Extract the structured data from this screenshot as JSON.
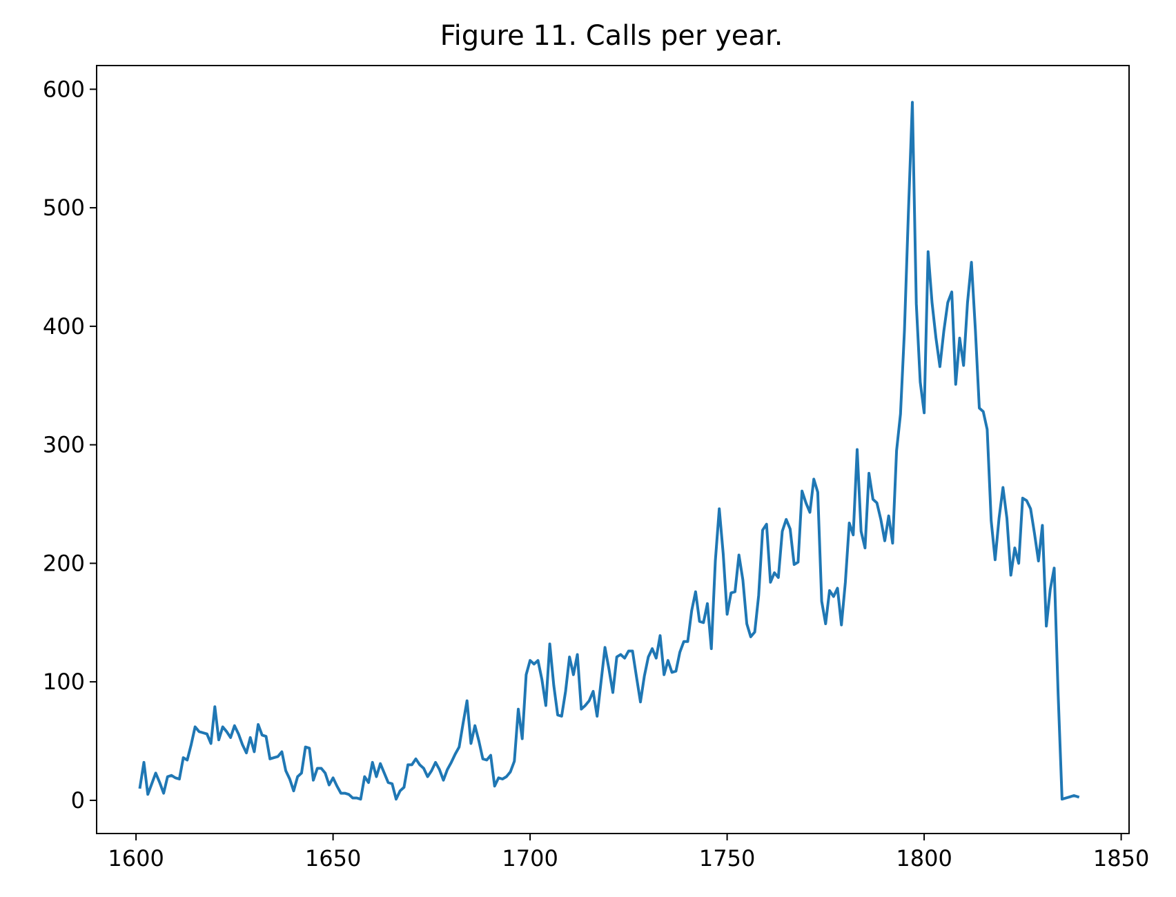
{
  "chart_data": {
    "type": "line",
    "title": "Figure 11. Calls per year.",
    "xlabel": "",
    "ylabel": "",
    "xlim": [
      1590,
      1852
    ],
    "ylim": [
      -28,
      620
    ],
    "x_ticks": [
      1600,
      1650,
      1700,
      1750,
      1800,
      1850
    ],
    "y_ticks": [
      0,
      100,
      200,
      300,
      400,
      500,
      600
    ],
    "grid": false,
    "color": "#1f77b4",
    "series": [
      {
        "x": [
          1601,
          1602,
          1603,
          1604,
          1605,
          1606,
          1607,
          1608,
          1609,
          1610,
          1611,
          1612,
          1613,
          1614,
          1615,
          1616,
          1617,
          1618,
          1619,
          1620,
          1621,
          1622,
          1623,
          1624,
          1625,
          1626,
          1627,
          1628,
          1629,
          1630,
          1631,
          1632,
          1633,
          1634,
          1635,
          1636,
          1637,
          1638,
          1639,
          1640,
          1641,
          1642,
          1643,
          1644,
          1645,
          1646,
          1647,
          1648,
          1649,
          1650,
          1651,
          1652,
          1653,
          1654,
          1655,
          1656,
          1657,
          1658,
          1659,
          1660,
          1661,
          1662,
          1663,
          1664,
          1665,
          1666,
          1667,
          1668,
          1669,
          1670,
          1671,
          1672,
          1673,
          1674,
          1675,
          1676,
          1677,
          1678,
          1679,
          1680,
          1681,
          1682,
          1683,
          1684,
          1685,
          1686,
          1687,
          1688,
          1689,
          1690,
          1691,
          1692,
          1693,
          1694,
          1695,
          1696,
          1697,
          1698,
          1699,
          1700,
          1701,
          1702,
          1703,
          1704,
          1705,
          1706,
          1707,
          1708,
          1709,
          1710,
          1711,
          1712,
          1713,
          1714,
          1715,
          1716,
          1717,
          1718,
          1719,
          1720,
          1721,
          1722,
          1723,
          1724,
          1725,
          1726,
          1727,
          1728,
          1729,
          1730,
          1731,
          1732,
          1733,
          1734,
          1735,
          1736,
          1737,
          1738,
          1739,
          1740,
          1741,
          1742,
          1743,
          1744,
          1745,
          1746,
          1747,
          1748,
          1749,
          1750,
          1751,
          1752,
          1753,
          1754,
          1755,
          1756,
          1757,
          1758,
          1759,
          1760,
          1761,
          1762,
          1763,
          1764,
          1765,
          1766,
          1767,
          1768,
          1769,
          1770,
          1771,
          1772,
          1773,
          1774,
          1775,
          1776,
          1777,
          1778,
          1779,
          1780,
          1781,
          1782,
          1783,
          1784,
          1785,
          1786,
          1787,
          1788,
          1789,
          1790,
          1791,
          1792,
          1793,
          1794,
          1795,
          1796,
          1797,
          1798,
          1799,
          1800,
          1801,
          1802,
          1803,
          1804,
          1805,
          1806,
          1807,
          1808,
          1809,
          1810,
          1811,
          1812,
          1813,
          1814,
          1815,
          1816,
          1817,
          1818,
          1819,
          1820,
          1821,
          1822,
          1823,
          1824,
          1825,
          1826,
          1827,
          1828,
          1829,
          1830,
          1831,
          1832,
          1833,
          1834,
          1835,
          1836,
          1837,
          1838,
          1839
        ],
        "y": [
          11,
          32,
          5,
          14,
          23,
          15,
          6,
          20,
          21,
          19,
          18,
          36,
          34,
          47,
          62,
          58,
          57,
          56,
          48,
          79,
          51,
          62,
          58,
          53,
          63,
          56,
          47,
          40,
          53,
          41,
          64,
          55,
          54,
          35,
          36,
          37,
          41,
          25,
          18,
          8,
          20,
          23,
          45,
          44,
          17,
          27,
          27,
          23,
          13,
          19,
          12,
          6,
          6,
          5,
          2,
          2,
          1,
          20,
          15,
          32,
          20,
          31,
          23,
          15,
          14,
          1,
          8,
          11,
          30,
          30,
          35,
          30,
          27,
          20,
          25,
          32,
          26,
          17,
          26,
          32,
          39,
          45,
          65,
          84,
          48,
          63,
          50,
          35,
          34,
          38,
          12,
          19,
          18,
          20,
          24,
          33,
          77,
          52,
          106,
          118,
          115,
          118,
          102,
          80,
          132,
          97,
          72,
          71,
          92,
          121,
          106,
          123,
          77,
          80,
          84,
          92,
          71,
          100,
          129,
          111,
          91,
          121,
          123,
          120,
          126,
          126,
          104,
          83,
          105,
          121,
          128,
          120,
          139,
          106,
          118,
          108,
          109,
          125,
          134,
          134,
          160,
          176,
          151,
          150,
          166,
          128,
          202,
          246,
          208,
          157,
          175,
          176,
          207,
          186,
          149,
          138,
          142,
          173,
          228,
          233,
          184,
          192,
          188,
          227,
          237,
          229,
          199,
          201,
          261,
          251,
          243,
          271,
          260,
          168,
          149,
          177,
          172,
          179,
          148,
          184,
          234,
          224,
          296,
          227,
          213,
          276,
          254,
          251,
          237,
          219,
          240,
          217,
          295,
          326,
          396,
          495,
          589,
          419,
          353,
          327,
          463,
          420,
          390,
          366,
          396,
          420,
          429,
          351,
          390,
          367,
          420,
          454,
          397,
          331,
          328,
          313,
          236,
          203,
          238,
          264,
          238,
          190,
          213,
          200,
          255,
          253,
          246,
          225,
          202,
          232,
          147,
          178,
          196,
          90,
          1,
          2,
          3,
          4,
          3
        ]
      }
    ]
  }
}
